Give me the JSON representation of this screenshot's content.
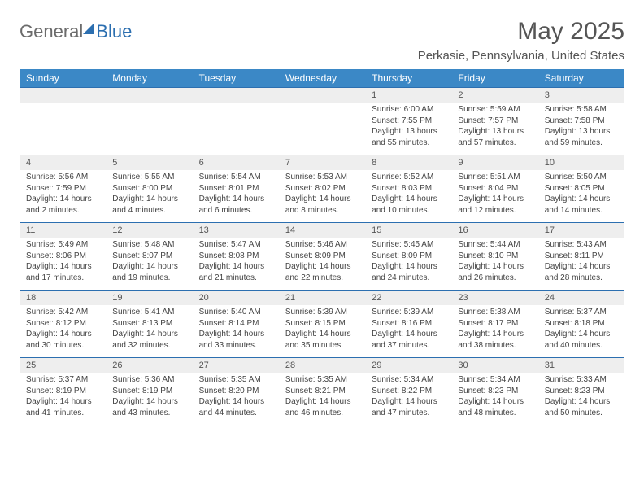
{
  "logo": {
    "part1": "General",
    "part2": "Blue"
  },
  "header": {
    "title": "May 2025",
    "subtitle": "Perkasie, Pennsylvania, United States",
    "title_color": "#555555",
    "title_fontsize": 30,
    "subtitle_fontsize": 15
  },
  "colors": {
    "header_bg": "#3b88c6",
    "header_text": "#ffffff",
    "daynum_bg": "#eeeeee",
    "border": "#2c6fb0",
    "body_text": "#444444",
    "background": "#ffffff"
  },
  "dayNames": [
    "Sunday",
    "Monday",
    "Tuesday",
    "Wednesday",
    "Thursday",
    "Friday",
    "Saturday"
  ],
  "weeks": [
    [
      {
        "num": "",
        "lines": []
      },
      {
        "num": "",
        "lines": []
      },
      {
        "num": "",
        "lines": []
      },
      {
        "num": "",
        "lines": []
      },
      {
        "num": "1",
        "lines": [
          "Sunrise: 6:00 AM",
          "Sunset: 7:55 PM",
          "Daylight: 13 hours",
          "and 55 minutes."
        ]
      },
      {
        "num": "2",
        "lines": [
          "Sunrise: 5:59 AM",
          "Sunset: 7:57 PM",
          "Daylight: 13 hours",
          "and 57 minutes."
        ]
      },
      {
        "num": "3",
        "lines": [
          "Sunrise: 5:58 AM",
          "Sunset: 7:58 PM",
          "Daylight: 13 hours",
          "and 59 minutes."
        ]
      }
    ],
    [
      {
        "num": "4",
        "lines": [
          "Sunrise: 5:56 AM",
          "Sunset: 7:59 PM",
          "Daylight: 14 hours",
          "and 2 minutes."
        ]
      },
      {
        "num": "5",
        "lines": [
          "Sunrise: 5:55 AM",
          "Sunset: 8:00 PM",
          "Daylight: 14 hours",
          "and 4 minutes."
        ]
      },
      {
        "num": "6",
        "lines": [
          "Sunrise: 5:54 AM",
          "Sunset: 8:01 PM",
          "Daylight: 14 hours",
          "and 6 minutes."
        ]
      },
      {
        "num": "7",
        "lines": [
          "Sunrise: 5:53 AM",
          "Sunset: 8:02 PM",
          "Daylight: 14 hours",
          "and 8 minutes."
        ]
      },
      {
        "num": "8",
        "lines": [
          "Sunrise: 5:52 AM",
          "Sunset: 8:03 PM",
          "Daylight: 14 hours",
          "and 10 minutes."
        ]
      },
      {
        "num": "9",
        "lines": [
          "Sunrise: 5:51 AM",
          "Sunset: 8:04 PM",
          "Daylight: 14 hours",
          "and 12 minutes."
        ]
      },
      {
        "num": "10",
        "lines": [
          "Sunrise: 5:50 AM",
          "Sunset: 8:05 PM",
          "Daylight: 14 hours",
          "and 14 minutes."
        ]
      }
    ],
    [
      {
        "num": "11",
        "lines": [
          "Sunrise: 5:49 AM",
          "Sunset: 8:06 PM",
          "Daylight: 14 hours",
          "and 17 minutes."
        ]
      },
      {
        "num": "12",
        "lines": [
          "Sunrise: 5:48 AM",
          "Sunset: 8:07 PM",
          "Daylight: 14 hours",
          "and 19 minutes."
        ]
      },
      {
        "num": "13",
        "lines": [
          "Sunrise: 5:47 AM",
          "Sunset: 8:08 PM",
          "Daylight: 14 hours",
          "and 21 minutes."
        ]
      },
      {
        "num": "14",
        "lines": [
          "Sunrise: 5:46 AM",
          "Sunset: 8:09 PM",
          "Daylight: 14 hours",
          "and 22 minutes."
        ]
      },
      {
        "num": "15",
        "lines": [
          "Sunrise: 5:45 AM",
          "Sunset: 8:09 PM",
          "Daylight: 14 hours",
          "and 24 minutes."
        ]
      },
      {
        "num": "16",
        "lines": [
          "Sunrise: 5:44 AM",
          "Sunset: 8:10 PM",
          "Daylight: 14 hours",
          "and 26 minutes."
        ]
      },
      {
        "num": "17",
        "lines": [
          "Sunrise: 5:43 AM",
          "Sunset: 8:11 PM",
          "Daylight: 14 hours",
          "and 28 minutes."
        ]
      }
    ],
    [
      {
        "num": "18",
        "lines": [
          "Sunrise: 5:42 AM",
          "Sunset: 8:12 PM",
          "Daylight: 14 hours",
          "and 30 minutes."
        ]
      },
      {
        "num": "19",
        "lines": [
          "Sunrise: 5:41 AM",
          "Sunset: 8:13 PM",
          "Daylight: 14 hours",
          "and 32 minutes."
        ]
      },
      {
        "num": "20",
        "lines": [
          "Sunrise: 5:40 AM",
          "Sunset: 8:14 PM",
          "Daylight: 14 hours",
          "and 33 minutes."
        ]
      },
      {
        "num": "21",
        "lines": [
          "Sunrise: 5:39 AM",
          "Sunset: 8:15 PM",
          "Daylight: 14 hours",
          "and 35 minutes."
        ]
      },
      {
        "num": "22",
        "lines": [
          "Sunrise: 5:39 AM",
          "Sunset: 8:16 PM",
          "Daylight: 14 hours",
          "and 37 minutes."
        ]
      },
      {
        "num": "23",
        "lines": [
          "Sunrise: 5:38 AM",
          "Sunset: 8:17 PM",
          "Daylight: 14 hours",
          "and 38 minutes."
        ]
      },
      {
        "num": "24",
        "lines": [
          "Sunrise: 5:37 AM",
          "Sunset: 8:18 PM",
          "Daylight: 14 hours",
          "and 40 minutes."
        ]
      }
    ],
    [
      {
        "num": "25",
        "lines": [
          "Sunrise: 5:37 AM",
          "Sunset: 8:19 PM",
          "Daylight: 14 hours",
          "and 41 minutes."
        ]
      },
      {
        "num": "26",
        "lines": [
          "Sunrise: 5:36 AM",
          "Sunset: 8:19 PM",
          "Daylight: 14 hours",
          "and 43 minutes."
        ]
      },
      {
        "num": "27",
        "lines": [
          "Sunrise: 5:35 AM",
          "Sunset: 8:20 PM",
          "Daylight: 14 hours",
          "and 44 minutes."
        ]
      },
      {
        "num": "28",
        "lines": [
          "Sunrise: 5:35 AM",
          "Sunset: 8:21 PM",
          "Daylight: 14 hours",
          "and 46 minutes."
        ]
      },
      {
        "num": "29",
        "lines": [
          "Sunrise: 5:34 AM",
          "Sunset: 8:22 PM",
          "Daylight: 14 hours",
          "and 47 minutes."
        ]
      },
      {
        "num": "30",
        "lines": [
          "Sunrise: 5:34 AM",
          "Sunset: 8:23 PM",
          "Daylight: 14 hours",
          "and 48 minutes."
        ]
      },
      {
        "num": "31",
        "lines": [
          "Sunrise: 5:33 AM",
          "Sunset: 8:23 PM",
          "Daylight: 14 hours",
          "and 50 minutes."
        ]
      }
    ]
  ]
}
